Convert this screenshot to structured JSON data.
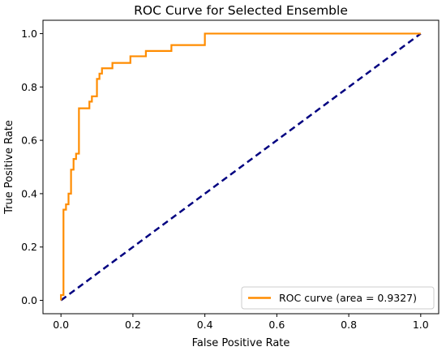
{
  "chart_data": {
    "type": "line",
    "title": "ROC Curve for Selected Ensemble",
    "xlabel": "False Positive Rate",
    "ylabel": "True Positive Rate",
    "xlim": [
      -0.05,
      1.05
    ],
    "ylim": [
      -0.05,
      1.05
    ],
    "xticks": [
      0.0,
      0.2,
      0.4,
      0.6,
      0.8,
      1.0
    ],
    "yticks": [
      0.0,
      0.2,
      0.4,
      0.6,
      0.8,
      1.0
    ],
    "xtick_labels": [
      "0.0",
      "0.2",
      "0.4",
      "0.6",
      "0.8",
      "1.0"
    ],
    "ytick_labels": [
      "0.0",
      "0.2",
      "0.4",
      "0.6",
      "0.8",
      "1.0"
    ],
    "grid": false,
    "legend_position": "lower-right",
    "series": [
      {
        "name": "ROC curve (area = 0.9327)",
        "color": "#ff8c00",
        "style": "solid",
        "x": [
          0.0,
          0.0,
          0.007,
          0.007,
          0.014,
          0.014,
          0.021,
          0.021,
          0.028,
          0.028,
          0.035,
          0.035,
          0.042,
          0.042,
          0.05,
          0.05,
          0.079,
          0.079,
          0.086,
          0.086,
          0.1,
          0.1,
          0.107,
          0.107,
          0.114,
          0.114,
          0.143,
          0.143,
          0.193,
          0.193,
          0.236,
          0.236,
          0.307,
          0.307,
          0.4,
          0.4,
          1.0
        ],
        "y": [
          0.0,
          0.02,
          0.02,
          0.34,
          0.34,
          0.36,
          0.36,
          0.4,
          0.4,
          0.49,
          0.49,
          0.53,
          0.53,
          0.55,
          0.55,
          0.72,
          0.72,
          0.745,
          0.745,
          0.765,
          0.765,
          0.83,
          0.83,
          0.85,
          0.85,
          0.87,
          0.87,
          0.89,
          0.89,
          0.915,
          0.915,
          0.935,
          0.935,
          0.957,
          0.957,
          1.0,
          1.0
        ]
      },
      {
        "color": "#000080",
        "style": "dashed",
        "x": [
          0.0,
          1.0
        ],
        "y": [
          0.0,
          1.0
        ]
      }
    ]
  }
}
